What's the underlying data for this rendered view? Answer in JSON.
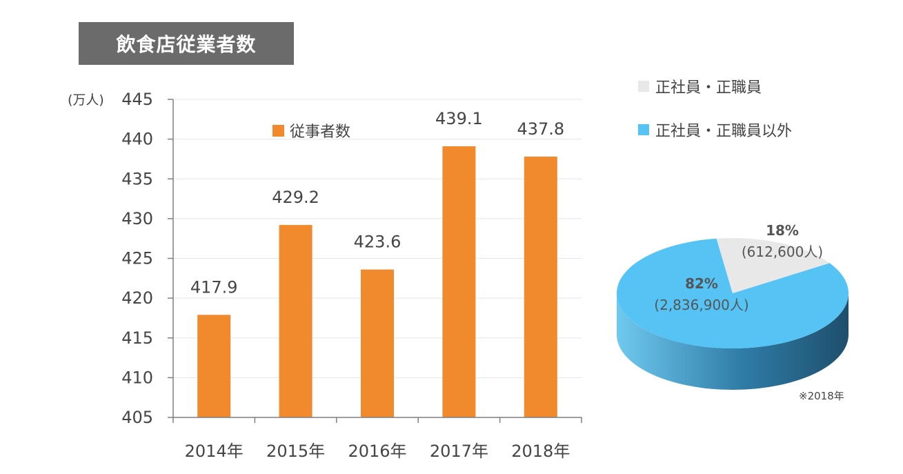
{
  "title": "飲食店従業者数",
  "colors": {
    "bar": "#f08a2c",
    "axis": "#7f7f7f",
    "grid": "#e5e5e5",
    "pie_regular": "#e8e8e8",
    "pie_nonregular": "#55c4f5",
    "pie_nonregular_side_dark": "#1e4f6c",
    "pie_regular_side": "#b9b9b9"
  },
  "chart_data": [
    {
      "type": "bar",
      "unit_label": "(万人)",
      "categories": [
        "2014年",
        "2015年",
        "2016年",
        "2017年",
        "2018年"
      ],
      "series": [
        {
          "name": "従事者数",
          "values": [
            417.9,
            429.2,
            423.6,
            439.1,
            437.8
          ]
        }
      ],
      "data_labels": [
        "417.9",
        "429.2",
        "423.6",
        "439.1",
        "437.8"
      ],
      "ylim": [
        405,
        445
      ],
      "yticks": [
        445,
        440,
        435,
        430,
        425,
        420,
        415,
        410,
        405
      ],
      "grid": true,
      "legend_position": "top"
    },
    {
      "type": "pie",
      "slices": [
        {
          "name": "正社員・正職員",
          "percent": 18,
          "percent_label": "18%",
          "count_label": "(612,600人)"
        },
        {
          "name": "正社員・正職員以外",
          "percent": 82,
          "percent_label": "82%",
          "count_label": "(2,836,900人)"
        }
      ],
      "legend_position": "top-right",
      "note": "※2018年"
    }
  ]
}
